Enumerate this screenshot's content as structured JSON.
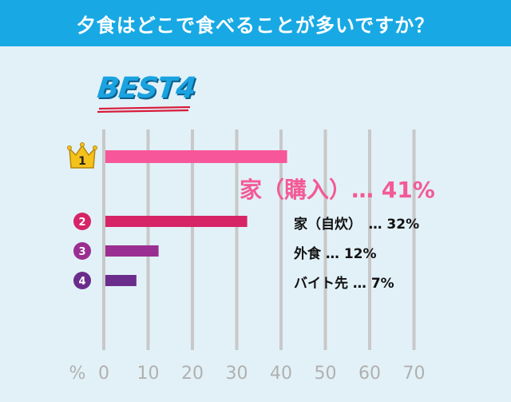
{
  "header": {
    "title": "夕食はどこで食べることが多いですか？"
  },
  "badge": {
    "text": "BEST4"
  },
  "axis": {
    "unit": "%",
    "ticks": [
      "0",
      "10",
      "20",
      "30",
      "40",
      "50",
      "60",
      "70"
    ]
  },
  "chart_data": {
    "type": "bar",
    "orientation": "horizontal",
    "title": "夕食はどこで食べることが多いですか？",
    "categories": [
      "家（購入）",
      "家（自炊）",
      "外食",
      "バイト先"
    ],
    "values": [
      41,
      32,
      12,
      7
    ],
    "labels": [
      "家（購入）… 41%",
      "家（自炊）　… 32%",
      "外食 … 12%",
      "バイト先 … 7%"
    ],
    "ranks": [
      "1",
      "2",
      "3",
      "4"
    ],
    "colors": [
      "#f7579a",
      "#d62467",
      "#9b2f91",
      "#6b2d8c"
    ],
    "xlim": [
      0,
      70
    ],
    "xunit": "%",
    "grid": true
  }
}
